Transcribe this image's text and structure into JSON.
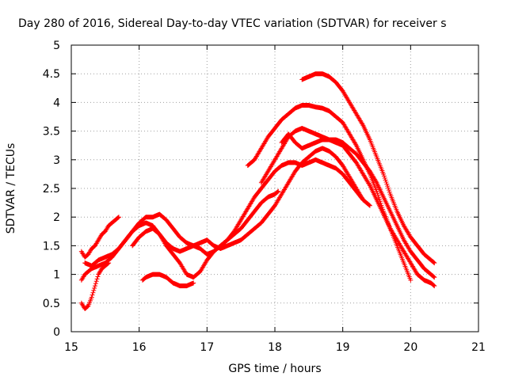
{
  "chart_data": {
    "type": "scatter",
    "title": "Day 280 of 2016, Sidereal Day-to-day VTEC variation (SDTVAR) for receiver s",
    "xlabel": "GPS time / hours",
    "ylabel": "SDTVAR / TECUs",
    "xlim": [
      15,
      21
    ],
    "ylim": [
      0,
      5
    ],
    "x_ticks": [
      "15",
      "16",
      "17",
      "18",
      "19",
      "20",
      "21"
    ],
    "y_ticks": [
      "0",
      "0.5",
      "1",
      "1.5",
      "2",
      "2.5",
      "3",
      "3.5",
      "4",
      "4.5",
      "5"
    ],
    "grid": true,
    "marker": "+",
    "color": "#ff0000",
    "series": [
      {
        "x": [
          15.15,
          15.2,
          15.25,
          15.3,
          15.35,
          15.4,
          15.45,
          15.5,
          15.55,
          15.6,
          15.65,
          15.7
        ],
        "y": [
          1.4,
          1.3,
          1.35,
          1.45,
          1.5,
          1.6,
          1.7,
          1.75,
          1.85,
          1.9,
          1.95,
          2.0
        ]
      },
      {
        "x": [
          15.15,
          15.2,
          15.25,
          15.3,
          15.35,
          15.4,
          15.45,
          15.5,
          15.55
        ],
        "y": [
          0.5,
          0.4,
          0.45,
          0.6,
          0.8,
          1.0,
          1.1,
          1.15,
          1.2
        ]
      },
      {
        "x": [
          15.15,
          15.2,
          15.3,
          15.4,
          15.5,
          15.6,
          15.7,
          15.8,
          15.9,
          16.0,
          16.1,
          16.2,
          16.3,
          16.4,
          16.5,
          16.6,
          16.7,
          16.8,
          16.9,
          17.0,
          17.1,
          17.2,
          17.3,
          17.4,
          17.5,
          17.6,
          17.7,
          17.8,
          17.9,
          18.0,
          18.1,
          18.2,
          18.3,
          18.4,
          18.5,
          18.6,
          18.7,
          18.8,
          18.9,
          19.0,
          19.1,
          19.2,
          19.3,
          19.4
        ],
        "y": [
          0.9,
          1.0,
          1.1,
          1.15,
          1.2,
          1.3,
          1.45,
          1.6,
          1.75,
          1.9,
          2.0,
          2.0,
          2.05,
          1.95,
          1.8,
          1.65,
          1.55,
          1.5,
          1.55,
          1.6,
          1.5,
          1.45,
          1.5,
          1.55,
          1.6,
          1.7,
          1.8,
          1.9,
          2.05,
          2.2,
          2.4,
          2.6,
          2.8,
          2.95,
          3.05,
          3.15,
          3.2,
          3.15,
          3.05,
          2.9,
          2.7,
          2.5,
          2.3,
          2.2
        ]
      },
      {
        "x": [
          15.2,
          15.3,
          15.4,
          15.5,
          15.6,
          15.7,
          15.8,
          15.9,
          16.0,
          16.1,
          16.2,
          16.3,
          16.4,
          16.5,
          16.6,
          16.7,
          16.8,
          16.9,
          17.0,
          17.1,
          17.2,
          17.3,
          17.4,
          17.5,
          17.6,
          17.7,
          17.8,
          17.9,
          18.0,
          18.05
        ],
        "y": [
          1.2,
          1.15,
          1.25,
          1.3,
          1.35,
          1.45,
          1.6,
          1.75,
          1.85,
          1.9,
          1.85,
          1.7,
          1.55,
          1.45,
          1.4,
          1.45,
          1.5,
          1.45,
          1.35,
          1.4,
          1.5,
          1.6,
          1.7,
          1.8,
          1.95,
          2.1,
          2.25,
          2.35,
          2.4,
          2.45
        ]
      },
      {
        "x": [
          15.9,
          16.0,
          16.1,
          16.2,
          16.3,
          16.4,
          16.5,
          16.6,
          16.7,
          16.8,
          16.9,
          17.0,
          17.1,
          17.2,
          17.3,
          17.4,
          17.5,
          17.6,
          17.7,
          17.8,
          17.9,
          18.0,
          18.1,
          18.2,
          18.3,
          18.4,
          18.5,
          18.6,
          18.7,
          18.8,
          18.9,
          19.0,
          19.1,
          19.2,
          19.3
        ],
        "y": [
          1.5,
          1.65,
          1.75,
          1.8,
          1.7,
          1.5,
          1.35,
          1.2,
          1.0,
          0.95,
          1.05,
          1.25,
          1.4,
          1.5,
          1.6,
          1.75,
          1.95,
          2.15,
          2.35,
          2.5,
          2.65,
          2.8,
          2.9,
          2.95,
          2.95,
          2.9,
          2.95,
          3.0,
          2.95,
          2.9,
          2.85,
          2.75,
          2.6,
          2.45,
          2.3
        ]
      },
      {
        "x": [
          16.05,
          16.1,
          16.2,
          16.3,
          16.4,
          16.5,
          16.6,
          16.7,
          16.8
        ],
        "y": [
          0.9,
          0.95,
          1.0,
          1.0,
          0.95,
          0.85,
          0.8,
          0.8,
          0.85
        ]
      },
      {
        "x": [
          17.6,
          17.7,
          17.8,
          17.9,
          18.0,
          18.1,
          18.2,
          18.3,
          18.4,
          18.5,
          18.6,
          18.7,
          18.8,
          18.9,
          19.0,
          19.1,
          19.2,
          19.3,
          19.4,
          19.5,
          19.6,
          19.7,
          19.8,
          19.9,
          20.0
        ],
        "y": [
          2.9,
          3.0,
          3.2,
          3.4,
          3.55,
          3.7,
          3.8,
          3.9,
          3.95,
          3.95,
          3.92,
          3.9,
          3.85,
          3.75,
          3.65,
          3.45,
          3.25,
          3.0,
          2.75,
          2.45,
          2.1,
          1.8,
          1.5,
          1.2,
          0.9
        ]
      },
      {
        "x": [
          18.4,
          18.5,
          18.6,
          18.7,
          18.8,
          18.9,
          19.0,
          19.1,
          19.2,
          19.3,
          19.4,
          19.5,
          19.6,
          19.7,
          19.8,
          19.9,
          20.0,
          20.1,
          20.2,
          20.3,
          20.35
        ],
        "y": [
          4.4,
          4.45,
          4.5,
          4.5,
          4.45,
          4.35,
          4.2,
          4.0,
          3.8,
          3.6,
          3.35,
          3.05,
          2.75,
          2.4,
          2.1,
          1.85,
          1.65,
          1.5,
          1.35,
          1.25,
          1.2
        ]
      },
      {
        "x": [
          17.8,
          17.9,
          18.0,
          18.1,
          18.2,
          18.3,
          18.4,
          18.5,
          18.6,
          18.7,
          18.8,
          18.9,
          19.0,
          19.1,
          19.2,
          19.3,
          19.4,
          19.5,
          19.6,
          19.7,
          19.8,
          19.9,
          20.0,
          20.1,
          20.2,
          20.3,
          20.35
        ],
        "y": [
          2.6,
          2.8,
          3.0,
          3.2,
          3.4,
          3.5,
          3.55,
          3.5,
          3.45,
          3.4,
          3.35,
          3.3,
          3.25,
          3.1,
          2.95,
          2.75,
          2.55,
          2.3,
          2.05,
          1.8,
          1.6,
          1.4,
          1.2,
          1.0,
          0.9,
          0.85,
          0.8
        ]
      },
      {
        "x": [
          18.1,
          18.2,
          18.3,
          18.4,
          18.5,
          18.6,
          18.7,
          18.8,
          18.9,
          19.0,
          19.1,
          19.2,
          19.3,
          19.4,
          19.5,
          19.6,
          19.7,
          19.8,
          19.9,
          20.0,
          20.1,
          20.2,
          20.3,
          20.35
        ],
        "y": [
          3.3,
          3.45,
          3.3,
          3.2,
          3.25,
          3.3,
          3.35,
          3.35,
          3.35,
          3.3,
          3.2,
          3.1,
          2.95,
          2.8,
          2.6,
          2.35,
          2.1,
          1.85,
          1.6,
          1.4,
          1.25,
          1.1,
          1.0,
          0.95
        ]
      }
    ]
  }
}
